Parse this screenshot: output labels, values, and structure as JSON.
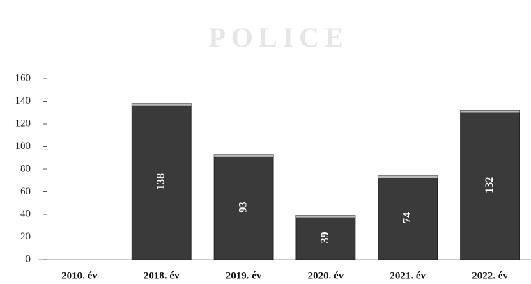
{
  "chart_data": {
    "type": "bar",
    "watermark": "POLICE",
    "categories": [
      "2010. év",
      "2018. év",
      "2019. év",
      "2020. év",
      "2021. év",
      "2022. év"
    ],
    "values": [
      null,
      138,
      93,
      39,
      74,
      132
    ],
    "color": "#3a3a3a",
    "ylim": [
      0,
      160
    ],
    "yticks": [
      0,
      20,
      40,
      60,
      80,
      100,
      120,
      140,
      160
    ]
  }
}
